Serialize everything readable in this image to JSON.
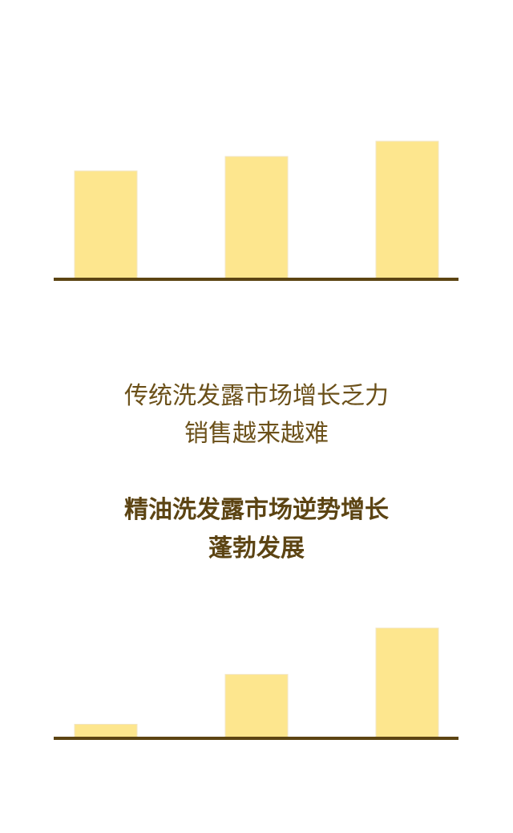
{
  "colors": {
    "bar": "#fde68e",
    "axis": "#5c4413",
    "text_light": "#6b5019",
    "text_bold": "#5c4413"
  },
  "chart_data": [
    {
      "type": "bar",
      "categories": [
        "",
        "",
        ""
      ],
      "values": [
        135,
        153,
        172
      ],
      "ylim": [
        0,
        200
      ],
      "title": "",
      "xlabel": "",
      "ylabel": "",
      "grid": false
    },
    {
      "type": "bar",
      "categories": [
        "",
        "",
        ""
      ],
      "values": [
        20,
        91,
        157
      ],
      "ylim": [
        0,
        200
      ],
      "title": "",
      "xlabel": "",
      "ylabel": "",
      "grid": false
    }
  ],
  "text_top": {
    "line1": "传统洗发露市场增长乏力",
    "line2": "销售越来越难"
  },
  "text_bottom": {
    "line1": "精油洗发露市场逆势增长",
    "line2": "蓬勃发展"
  }
}
